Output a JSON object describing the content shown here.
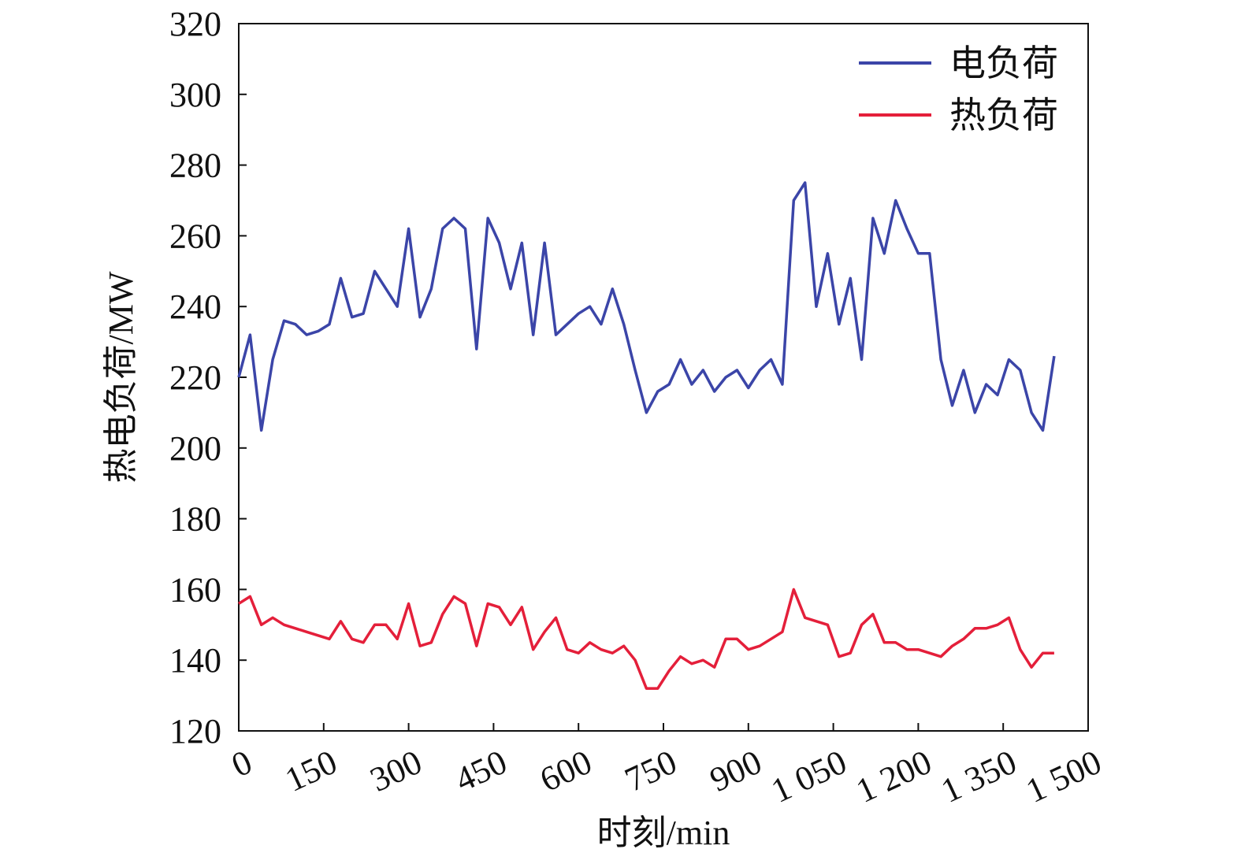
{
  "chart_data": {
    "type": "line",
    "xlabel": "时刻/min",
    "ylabel": "热电负荷/MW",
    "x": [
      0,
      20,
      40,
      60,
      80,
      100,
      120,
      140,
      160,
      180,
      200,
      220,
      240,
      260,
      280,
      300,
      320,
      340,
      360,
      380,
      400,
      420,
      440,
      460,
      480,
      500,
      520,
      540,
      560,
      580,
      600,
      620,
      640,
      660,
      680,
      700,
      720,
      740,
      760,
      780,
      800,
      820,
      840,
      860,
      880,
      900,
      920,
      940,
      960,
      980,
      1000,
      1020,
      1040,
      1060,
      1080,
      1100,
      1120,
      1140,
      1160,
      1180,
      1200,
      1220,
      1240,
      1260,
      1280,
      1300,
      1320,
      1340,
      1360,
      1380,
      1400,
      1420,
      1440
    ],
    "series": [
      {
        "name": "电负荷",
        "color": "#3b45a8",
        "values": [
          220,
          232,
          205,
          225,
          236,
          235,
          232,
          233,
          235,
          248,
          237,
          238,
          250,
          245,
          240,
          262,
          237,
          245,
          262,
          265,
          262,
          228,
          265,
          258,
          245,
          258,
          232,
          258,
          232,
          235,
          238,
          240,
          235,
          245,
          235,
          222,
          210,
          216,
          218,
          225,
          218,
          222,
          216,
          220,
          222,
          217,
          222,
          225,
          218,
          270,
          275,
          240,
          255,
          235,
          248,
          225,
          265,
          255,
          270,
          262,
          255,
          255,
          225,
          212,
          222,
          210,
          218,
          215,
          225,
          222,
          210,
          205,
          226
        ]
      },
      {
        "name": "热负荷",
        "color": "#e41f3a",
        "values": [
          156,
          158,
          150,
          152,
          150,
          149,
          148,
          147,
          146,
          151,
          146,
          145,
          150,
          150,
          146,
          156,
          144,
          145,
          153,
          158,
          156,
          144,
          156,
          155,
          150,
          155,
          143,
          148,
          152,
          143,
          142,
          145,
          143,
          142,
          144,
          140,
          132,
          132,
          137,
          141,
          139,
          140,
          138,
          146,
          146,
          143,
          144,
          146,
          148,
          160,
          152,
          151,
          150,
          141,
          142,
          150,
          153,
          145,
          145,
          143,
          143,
          142,
          141,
          144,
          146,
          149,
          149,
          150,
          152,
          143,
          138,
          142,
          142
        ]
      }
    ],
    "xlim": [
      0,
      1500
    ],
    "xticks": [
      0,
      150,
      300,
      450,
      600,
      750,
      900,
      {
        "value": 1050,
        "label": "1 050"
      },
      {
        "value": 1200,
        "label": "1 200"
      },
      {
        "value": 1350,
        "label": "1 350"
      },
      {
        "value": 1500,
        "label": "1 500"
      }
    ],
    "ylim": [
      120,
      320
    ],
    "yticks": [
      120,
      140,
      160,
      180,
      200,
      220,
      240,
      260,
      280,
      300,
      320
    ],
    "legend": "upper right"
  }
}
